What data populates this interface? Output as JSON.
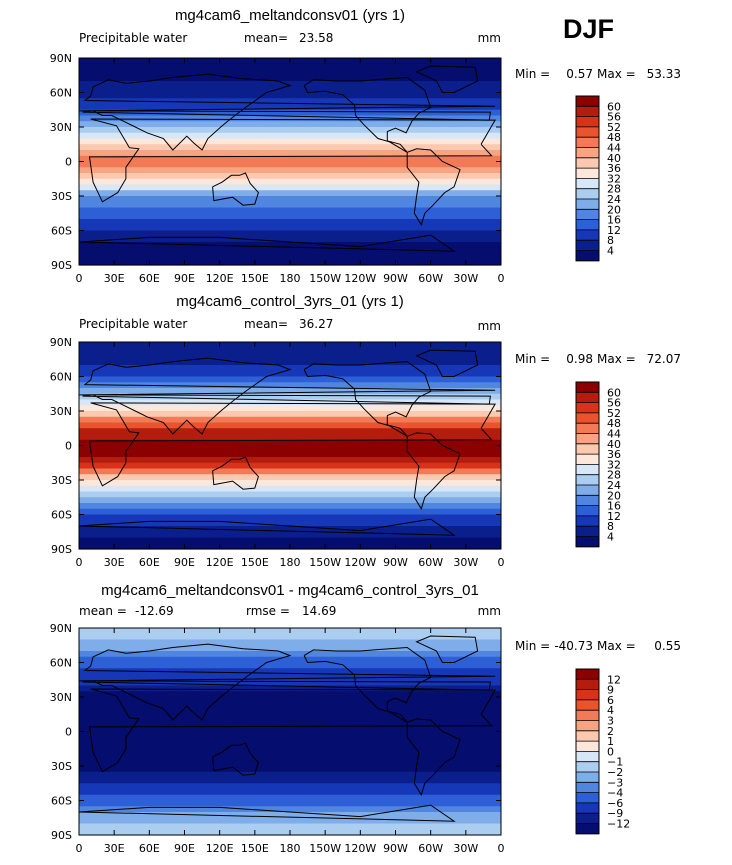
{
  "season": "DJF",
  "chart_data": [
    {
      "type": "heatmap",
      "title": "mg4cam6_meltandconsv01 (yrs 1)",
      "variable_label": "Precipitable water",
      "stat_label": "mean=",
      "stat_value": "23.58",
      "units": "mm",
      "min_label": "Min =",
      "min_value": "0.57",
      "max_label": "Max =",
      "max_value": "53.33",
      "colorbar_levels": [
        "60",
        "56",
        "52",
        "48",
        "44",
        "40",
        "36",
        "32",
        "28",
        "24",
        "20",
        "16",
        "12",
        "8",
        "4"
      ],
      "colorbar_colors": [
        "#8b0000",
        "#b41d0d",
        "#d8321a",
        "#e9532e",
        "#f27a57",
        "#f7a483",
        "#fbc9b0",
        "#fde7da",
        "#d8e7f7",
        "#abcdf0",
        "#7eade9",
        "#5086e0",
        "#2d60d6",
        "#1637b8",
        "#0b1f8c",
        "#050d6e"
      ],
      "zonal_profile_lat": [
        90,
        75,
        60,
        45,
        30,
        15,
        0,
        -15,
        -30,
        -45,
        -60,
        -75,
        -90
      ],
      "zonal_profile_value": [
        2,
        3,
        6,
        12,
        22,
        38,
        47,
        36,
        20,
        13,
        7,
        3,
        1
      ],
      "y_tick_labels": [
        "90N",
        "60N",
        "30N",
        "0",
        "30S",
        "60S",
        "90S"
      ],
      "x_tick_labels": [
        "0",
        "30E",
        "60E",
        "90E",
        "120E",
        "150E",
        "180",
        "150W",
        "120W",
        "90W",
        "60W",
        "30W",
        "0"
      ]
    },
    {
      "type": "heatmap",
      "title": "mg4cam6_control_3yrs_01 (yrs 1)",
      "variable_label": "Precipitable water",
      "stat_label": "mean=",
      "stat_value": "36.27",
      "units": "mm",
      "min_label": "Min =",
      "min_value": "0.98",
      "max_label": "Max =",
      "max_value": "72.07",
      "colorbar_levels": [
        "60",
        "56",
        "52",
        "48",
        "44",
        "40",
        "36",
        "32",
        "28",
        "24",
        "20",
        "16",
        "12",
        "8",
        "4"
      ],
      "colorbar_colors": [
        "#8b0000",
        "#b41d0d",
        "#d8321a",
        "#e9532e",
        "#f27a57",
        "#f7a483",
        "#fbc9b0",
        "#fde7da",
        "#d8e7f7",
        "#abcdf0",
        "#7eade9",
        "#5086e0",
        "#2d60d6",
        "#1637b8",
        "#0b1f8c",
        "#050d6e"
      ],
      "zonal_profile_lat": [
        90,
        75,
        60,
        45,
        30,
        15,
        0,
        -15,
        -30,
        -45,
        -60,
        -75,
        -90
      ],
      "zonal_profile_value": [
        4,
        6,
        12,
        22,
        36,
        55,
        64,
        56,
        36,
        22,
        12,
        5,
        2
      ],
      "y_tick_labels": [
        "90N",
        "60N",
        "30N",
        "0",
        "30S",
        "60S",
        "90S"
      ],
      "x_tick_labels": [
        "0",
        "30E",
        "60E",
        "90E",
        "120E",
        "150E",
        "180",
        "150W",
        "120W",
        "90W",
        "60W",
        "30W",
        "0"
      ]
    },
    {
      "type": "heatmap",
      "title": "mg4cam6_meltandconsv01 - mg4cam6_control_3yrs_01",
      "stat_label": "mean =",
      "stat_value": "-12.69",
      "stat2_label": "rmse =",
      "stat2_value": "14.69",
      "units": "mm",
      "min_label": "Min =",
      "min_value": "-40.73",
      "max_label": "Max =",
      "max_value": "0.55",
      "colorbar_levels": [
        "12",
        "9",
        "6",
        "4",
        "3",
        "2",
        "1",
        "0",
        "−1",
        "−2",
        "−3",
        "−4",
        "−6",
        "−9",
        "−12"
      ],
      "colorbar_colors": [
        "#8b0000",
        "#b41d0d",
        "#d8321a",
        "#e9532e",
        "#f27a57",
        "#f7a483",
        "#fbc9b0",
        "#fde7da",
        "#d8e7f7",
        "#abcdf0",
        "#7eade9",
        "#5086e0",
        "#2d60d6",
        "#1637b8",
        "#0b1f8c",
        "#050d6e"
      ],
      "zonal_profile_lat": [
        90,
        75,
        60,
        45,
        30,
        15,
        0,
        -15,
        -30,
        -45,
        -60,
        -75,
        -90
      ],
      "zonal_profile_value": [
        -1.5,
        -2.5,
        -5,
        -8,
        -13,
        -18,
        -20,
        -18,
        -15,
        -9,
        -5,
        -2.5,
        -1.5
      ],
      "y_tick_labels": [
        "90N",
        "60N",
        "30N",
        "0",
        "30S",
        "60S",
        "90S"
      ],
      "x_tick_labels": [
        "0",
        "30E",
        "60E",
        "90E",
        "120E",
        "150E",
        "180",
        "150W",
        "120W",
        "90W",
        "60W",
        "30W",
        "0"
      ]
    }
  ]
}
